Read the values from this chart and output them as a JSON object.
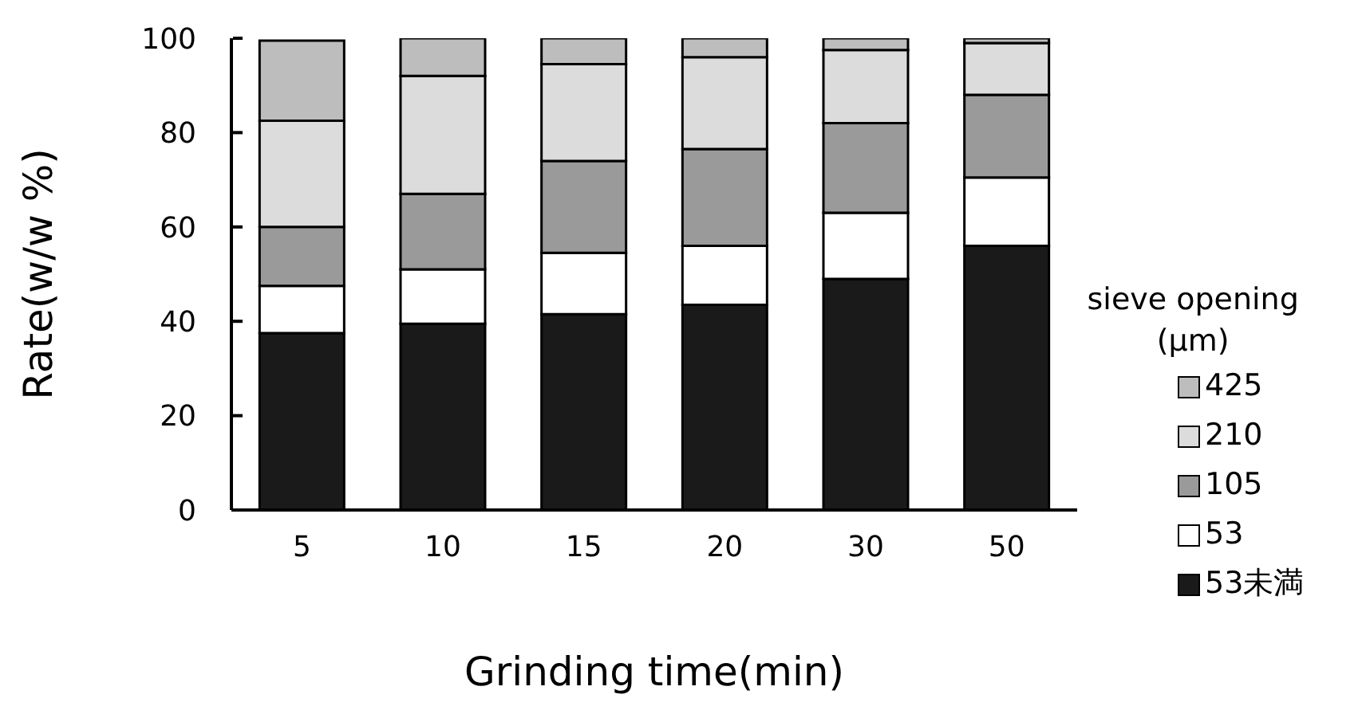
{
  "chart_data": {
    "type": "bar",
    "stacked": true,
    "xlabel": "Grinding time(min)",
    "ylabel": "Rate(w/w %)",
    "legend_title": "sieve opening\n(μm)",
    "categories": [
      "5",
      "10",
      "15",
      "20",
      "30",
      "50"
    ],
    "series": [
      {
        "name": "53未満",
        "color": "#1a1a1a",
        "values": [
          37.5,
          39.5,
          41.5,
          43.5,
          49,
          56
        ]
      },
      {
        "name": "53",
        "color": "#ffffff",
        "values": [
          10,
          11.5,
          13,
          12.5,
          14,
          14.5
        ]
      },
      {
        "name": "105",
        "color": "#9a9a9a",
        "values": [
          12.5,
          16,
          19.5,
          20.5,
          19,
          17.5
        ]
      },
      {
        "name": "210",
        "color": "#dcdcdc",
        "values": [
          22.5,
          25,
          20.5,
          19.5,
          15.5,
          11
        ]
      },
      {
        "name": "425",
        "color": "#bdbdbd",
        "values": [
          17,
          8,
          5.5,
          4,
          2.5,
          1
        ]
      }
    ],
    "ylim": [
      0,
      100
    ],
    "yticks": [
      0,
      20,
      40,
      60,
      80,
      100
    ],
    "grid": false,
    "legend": "right"
  }
}
